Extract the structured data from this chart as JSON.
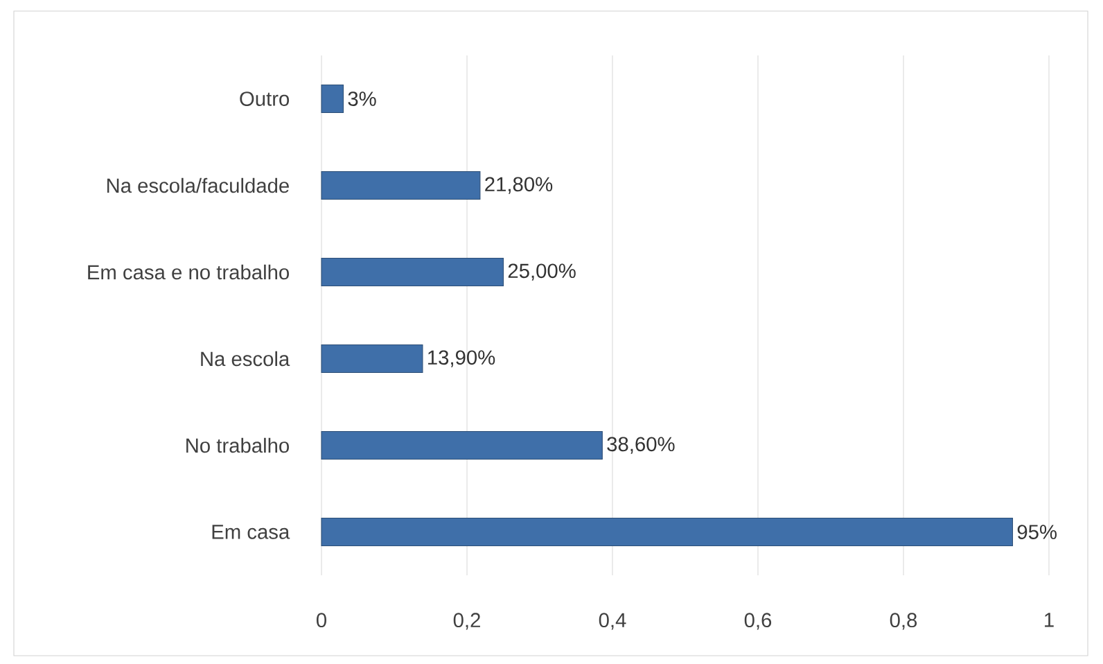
{
  "chart_data": {
    "type": "bar",
    "orientation": "horizontal",
    "categories": [
      "Outro",
      "Na escola/faculdade",
      "Em casa e no trabalho",
      "Na escola",
      "No trabalho",
      "Em casa"
    ],
    "values": [
      0.03,
      0.218,
      0.25,
      0.139,
      0.386,
      0.95
    ],
    "value_labels": [
      "3%",
      "21,80%",
      "25,00%",
      "13,90%",
      "38,60%",
      "95%"
    ],
    "color": "#3f6fa9",
    "xlim": [
      0,
      1
    ],
    "xticks": [
      0,
      {
        "value": 0.2,
        "label": "0,2"
      },
      {
        "value": 0.4,
        "label": "0,4"
      },
      {
        "value": 0.6,
        "label": "0,6"
      },
      {
        "value": 0.8,
        "label": "0,8"
      },
      1
    ],
    "grid": "x"
  }
}
